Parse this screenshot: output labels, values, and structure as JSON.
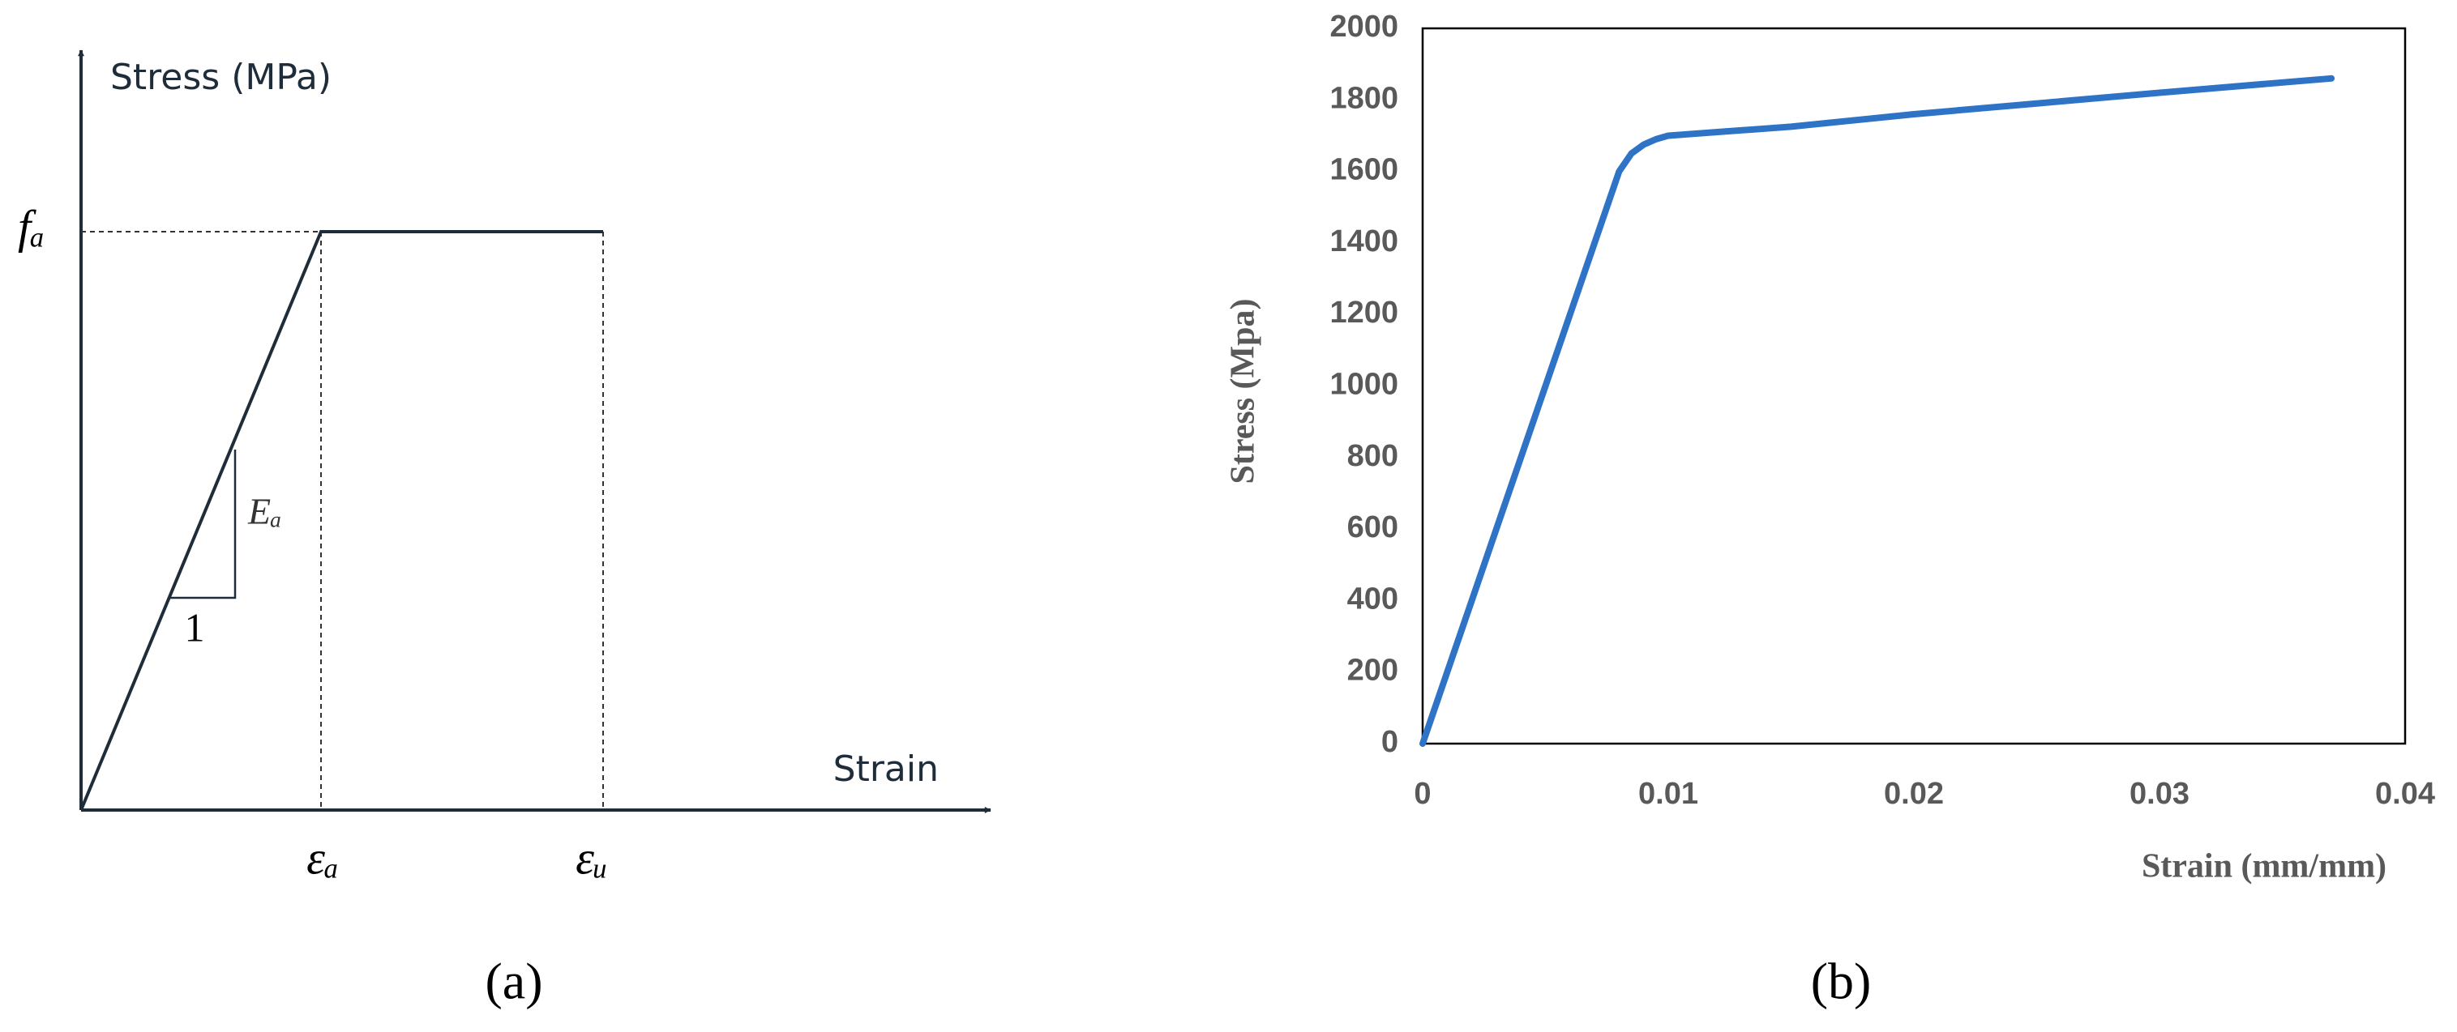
{
  "chart_data": [
    {
      "type": "schematic",
      "y_label": "Stress (MPa)",
      "x_label": "Strain",
      "peak_label": "fₐ",
      "yield_strain_label": "εₐ",
      "ultimate_strain_label": "εᵤ",
      "slope_label": "Eₐ",
      "run_label": "1",
      "caption": "(a)"
    },
    {
      "type": "line",
      "y_label": "Stress (Mpa)",
      "x_label": "Strain (mm/mm)",
      "caption": "(b)",
      "color": "#2f73c6",
      "x": [
        0,
        0.002,
        0.004,
        0.006,
        0.008,
        0.0085,
        0.009,
        0.0095,
        0.01,
        0.012,
        0.015,
        0.02,
        0.025,
        0.03,
        0.037
      ],
      "values": [
        0,
        400,
        800,
        1200,
        1600,
        1650,
        1675,
        1690,
        1700,
        1710,
        1725,
        1760,
        1790,
        1820,
        1860
      ],
      "xlim": [
        0,
        0.04
      ],
      "xticks": [
        0,
        0.01,
        0.02,
        0.03,
        0.04
      ],
      "ylim": [
        0,
        2000
      ],
      "yticks": [
        0,
        200,
        400,
        600,
        800,
        1000,
        1200,
        1400,
        1600,
        1800,
        2000
      ]
    }
  ]
}
